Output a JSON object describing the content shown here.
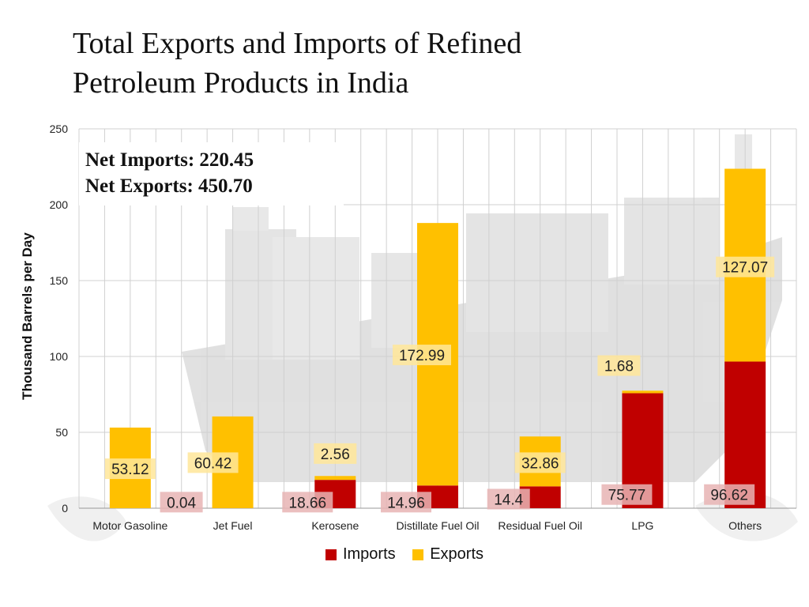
{
  "title_line1": "Total Exports and Imports of Refined",
  "title_line2": "Petroleum Products in India",
  "net_imports_label": "Net Imports: 220.45",
  "net_exports_label": "Net Exports:  450.70",
  "colors": {
    "imports": "#C00000",
    "exports": "#FFC000",
    "imports_label_bg": "#E8B4B4",
    "exports_label_bg": "#FFE699",
    "grid": "#d0d0d0"
  },
  "chart_data": {
    "type": "bar",
    "stacked": true,
    "categories": [
      "Motor Gasoline",
      "Jet Fuel",
      "Kerosene",
      "Distillate Fuel Oil",
      "Residual Fuel Oil",
      "LPG",
      "Others"
    ],
    "series": [
      {
        "name": "Imports",
        "values": [
          0,
          0.04,
          18.66,
          14.96,
          14.4,
          75.77,
          96.62
        ],
        "labels": [
          "",
          "0.04",
          "18.66",
          "14.96",
          "14.4",
          "75.77",
          "96.62"
        ]
      },
      {
        "name": "Exports",
        "values": [
          53.12,
          60.42,
          2.56,
          172.99,
          32.86,
          1.68,
          127.07
        ],
        "labels": [
          "53.12",
          "60.42",
          "2.56",
          "172.99",
          "32.86",
          "1.68",
          "127.07"
        ]
      }
    ],
    "ylabel": "Thousand Barrels per Day",
    "xlabel": "",
    "ylim": [
      0,
      250
    ],
    "yticks": [
      0,
      50,
      100,
      150,
      200,
      250
    ],
    "grid": true,
    "legend_position": "bottom"
  }
}
